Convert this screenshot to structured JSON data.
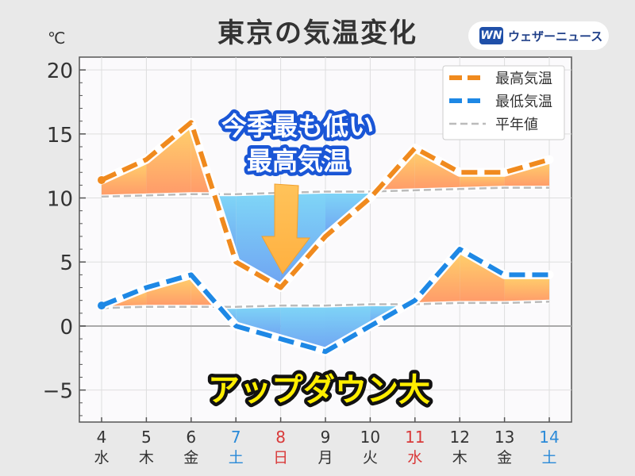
{
  "header": {
    "title": "東京の気温変化",
    "unit": "℃",
    "logo_mark": "WN",
    "logo_text": "ウェザーニュース"
  },
  "chart_data": {
    "type": "line",
    "title": "東京の気温変化",
    "ylabel": "℃",
    "ylim": [
      -7.5,
      21
    ],
    "yticks": [
      -5,
      0,
      5,
      10,
      15,
      20
    ],
    "grid": true,
    "legend_position": "top-right",
    "categories": [
      "4",
      "5",
      "6",
      "7",
      "8",
      "9",
      "10",
      "11",
      "12",
      "13",
      "14"
    ],
    "weekdays": [
      "水",
      "木",
      "金",
      "土",
      "日",
      "月",
      "火",
      "水",
      "木",
      "金",
      "土"
    ],
    "day_colors": [
      "#333333",
      "#333333",
      "#333333",
      "#2a8ad8",
      "#d93a3a",
      "#333333",
      "#333333",
      "#d93a3a",
      "#333333",
      "#333333",
      "#2a8ad8"
    ],
    "series": [
      {
        "name": "最高気温",
        "color": "#f08a1e",
        "values": [
          11.4,
          13.0,
          15.9,
          5.0,
          3.0,
          7.0,
          10.0,
          13.9,
          12.0,
          12.0,
          13.0
        ]
      },
      {
        "name": "最低気温",
        "color": "#1e88e5",
        "values": [
          1.6,
          3.0,
          4.0,
          0.0,
          -1.0,
          -2.0,
          0.0,
          2.0,
          6.0,
          4.0,
          4.0
        ]
      },
      {
        "name": "平年値",
        "color": "#bbbbbb",
        "values": [
          10.1,
          10.2,
          10.3,
          10.3,
          10.4,
          10.5,
          10.5,
          10.6,
          10.7,
          10.8,
          10.8
        ]
      },
      {
        "name": "平年値",
        "color": "#bbbbbb",
        "values": [
          1.4,
          1.5,
          1.5,
          1.5,
          1.6,
          1.6,
          1.7,
          1.7,
          1.8,
          1.8,
          1.9
        ]
      }
    ],
    "annotations": {
      "callout_line1": "今季最も低い",
      "callout_line2": "最高気温",
      "bottom_text": "アップダウン大"
    }
  }
}
